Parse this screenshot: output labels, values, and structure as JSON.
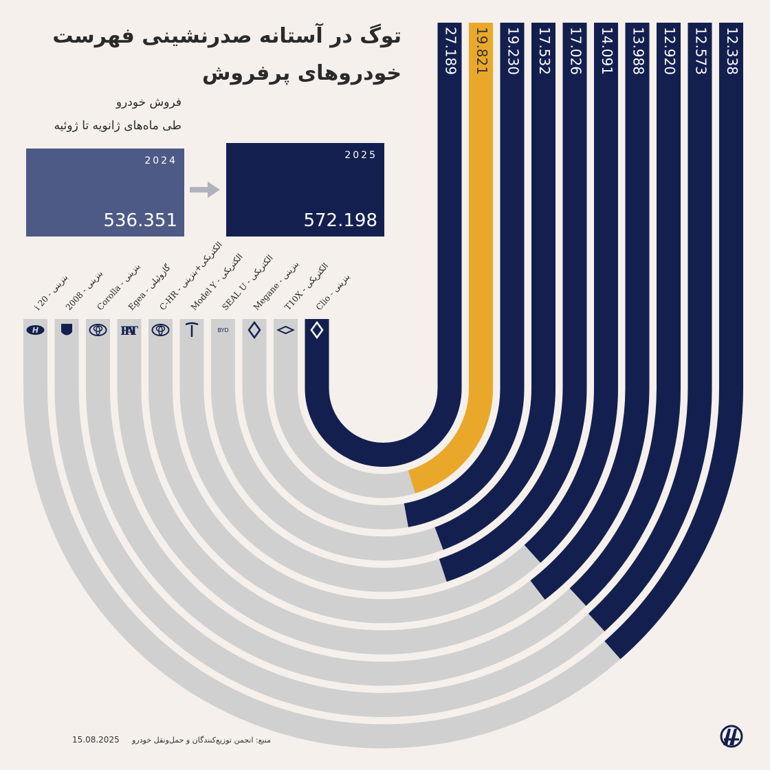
{
  "header": {
    "title_line1": "توگ در آستانه صدرنشینی فهرست",
    "title_line2": "خودروهای پرفروش",
    "subtitle_line1": "فروش خودرو",
    "subtitle_line2": "طی ماه‌های ژانویه تا ژوئیه"
  },
  "totals": {
    "y2024": {
      "year": "2024",
      "value": "536.351"
    },
    "y2025": {
      "year": "2025",
      "value": "572.198"
    }
  },
  "footer": {
    "date": "15.08.2025",
    "source": "منبع: انجمن توزیع‌کنندگان و حمل‌ونقل خودرو"
  },
  "colors": {
    "background": "#f5f0eb",
    "bar_dark": "#13204f",
    "bar_highlight": "#eaa82a",
    "bar_track": "#d0d0d0",
    "box_2024": "#4d5a85",
    "box_2025": "#13204f",
    "logo_red": "#c8102e"
  },
  "chart_data": {
    "type": "bar",
    "title": "توگ در آستانه صدرنشینی فهرست خودروهای پرفروش",
    "subtitle": "فروش خودرو طی ماه‌های ژانویه تا ژوئیه",
    "categories": [
      "Clio - بنزینی",
      "T10X - الکتریکی",
      "Megane - بنزینی",
      "SEAL U - الکتریکی",
      "Model Y - الکتریکی",
      "C-HR - الکتریکی+بنزینی",
      "Egea - گازوئیلی",
      "Corolla - بنزینی",
      "2008 - بنزینی",
      "i 20 - بنزینی"
    ],
    "brands": [
      "renault-logo",
      "togg-logo",
      "renault-logo",
      "byd-logo",
      "tesla-logo",
      "toyota-logo",
      "fiat-logo",
      "toyota-logo",
      "peugeot-logo",
      "hyundai-logo"
    ],
    "values": [
      27189,
      19821,
      19230,
      17532,
      17026,
      14091,
      13988,
      12920,
      12573,
      12338
    ],
    "value_labels": [
      "27.189",
      "19.821",
      "19.230",
      "17.532",
      "17.026",
      "14.091",
      "13.988",
      "12.920",
      "12.573",
      "12.338"
    ],
    "highlight": "T10X - الکتریکی",
    "max": 27189
  }
}
